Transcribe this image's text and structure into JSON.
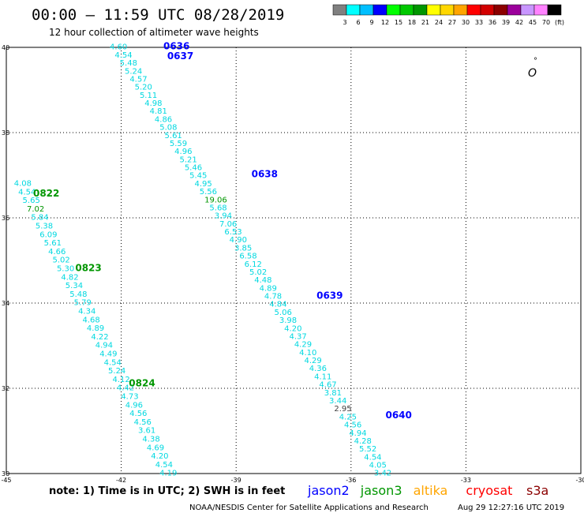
{
  "header": {
    "title": "00:00 – 11:59 UTC 08/28/2019",
    "subtitle": "12 hour collection of altimeter wave heights"
  },
  "legend": {
    "colors": [
      "#808080",
      "#00ffff",
      "#00bfff",
      "#0000ff",
      "#00ff00",
      "#00c800",
      "#009600",
      "#ffff00",
      "#ffd700",
      "#ffa500",
      "#ff0000",
      "#d20000",
      "#8b0000",
      "#9b009b",
      "#c896ff",
      "#ff82ff",
      "#000000"
    ],
    "labels": [
      "3",
      "6",
      "9",
      "12",
      "15",
      "18",
      "21",
      "24",
      "27",
      "30",
      "33",
      "36",
      "39",
      "42",
      "45",
      "70",
      "(ft)"
    ]
  },
  "axes": {
    "lon_ticks": [
      "-45",
      "-42",
      "-39",
      "-36",
      "-33",
      "-30"
    ],
    "lat_ticks": [
      "40",
      "38",
      "36",
      "34",
      "32",
      "30"
    ],
    "lon_range": [
      -45,
      -30
    ],
    "lat_range": [
      30,
      40
    ]
  },
  "tracks": [
    {
      "id": "track-a",
      "start": [
        -42.3,
        39.95
      ],
      "end": [
        -35.4,
        29.95
      ],
      "points": [
        "4.60",
        "4.54",
        "5.48",
        "5.24",
        "4.57",
        "5.20",
        "5.11",
        "4.98",
        "4.81",
        "4.86",
        "5.08",
        "5.61",
        "5.59",
        "4.96",
        "5.21",
        "5.46",
        "5.45",
        "4.95",
        "5.56",
        "19.06",
        "5.68",
        "3.94",
        "7.06",
        "6.53",
        "4.90",
        "3.85",
        "6.58",
        "6.12",
        "5.02",
        "4.48",
        "4.89",
        "4.78",
        "4.84",
        "5.06",
        "3.98",
        "4.20",
        "4.37",
        "4.29",
        "4.10",
        "4.29",
        "4.36",
        "4.11",
        "4.67",
        "3.81",
        "3.44",
        "2.95",
        "4.25",
        "4.56",
        "4.94",
        "4.28",
        "5.52",
        "4.54",
        "4.05",
        "3.42"
      ],
      "highlight": {
        "19.06": "#009600",
        "2.95": "#404040"
      }
    },
    {
      "id": "track-b",
      "start": [
        -44.8,
        36.75
      ],
      "end": [
        -41.0,
        29.95
      ],
      "points": [
        "4.08",
        "4.54",
        "5.65",
        "7.02",
        "5.84",
        "5.38",
        "6.09",
        "5.61",
        "4.66",
        "5.02",
        "5.30",
        "4.82",
        "5.34",
        "5.48",
        "5.79",
        "4.34",
        "4.68",
        "4.89",
        "4.22",
        "4.94",
        "4.49",
        "4.54",
        "5.24",
        "4.12",
        "4.42",
        "4.73",
        "4.96",
        "4.56",
        "4.56",
        "3.61",
        "4.38",
        "4.69",
        "4.20",
        "4.54",
        "4.19"
      ],
      "highlight": {
        "7.02": "#009600"
      }
    }
  ],
  "time_labels": [
    {
      "text": "0636",
      "lon": -40.9,
      "lat": 39.95,
      "color": "#0000ff"
    },
    {
      "text": "0637",
      "lon": -40.8,
      "lat": 39.72,
      "color": "#0000ff"
    },
    {
      "text": "0638",
      "lon": -38.6,
      "lat": 36.95,
      "color": "#0000ff"
    },
    {
      "text": "0639",
      "lon": -36.9,
      "lat": 34.1,
      "color": "#0000ff"
    },
    {
      "text": "0640",
      "lon": -35.1,
      "lat": 31.3,
      "color": "#0000ff"
    },
    {
      "text": "0822",
      "lon": -44.3,
      "lat": 36.5,
      "color": "#009600"
    },
    {
      "text": "0823",
      "lon": -43.2,
      "lat": 34.75,
      "color": "#009600"
    },
    {
      "text": "0824",
      "lon": -41.8,
      "lat": 32.05,
      "color": "#009600"
    }
  ],
  "degree_marker": {
    "text": "°",
    "glyph": "O"
  },
  "footer": {
    "note": "note:  1) Time is in UTC;  2) SWH is in feet",
    "satellites": [
      {
        "name": "jason2",
        "color": "#0000ff"
      },
      {
        "name": "jason3",
        "color": "#009600"
      },
      {
        "name": "altika",
        "color": "#ffa500"
      },
      {
        "name": "cryosat",
        "color": "#ff0000"
      },
      {
        "name": "s3a",
        "color": "#8b0000"
      }
    ],
    "credit": "NOAA/NESDIS Center for Satellite Applications and Research",
    "timestamp": "Aug 29 12:27:16 UTC 2019"
  }
}
